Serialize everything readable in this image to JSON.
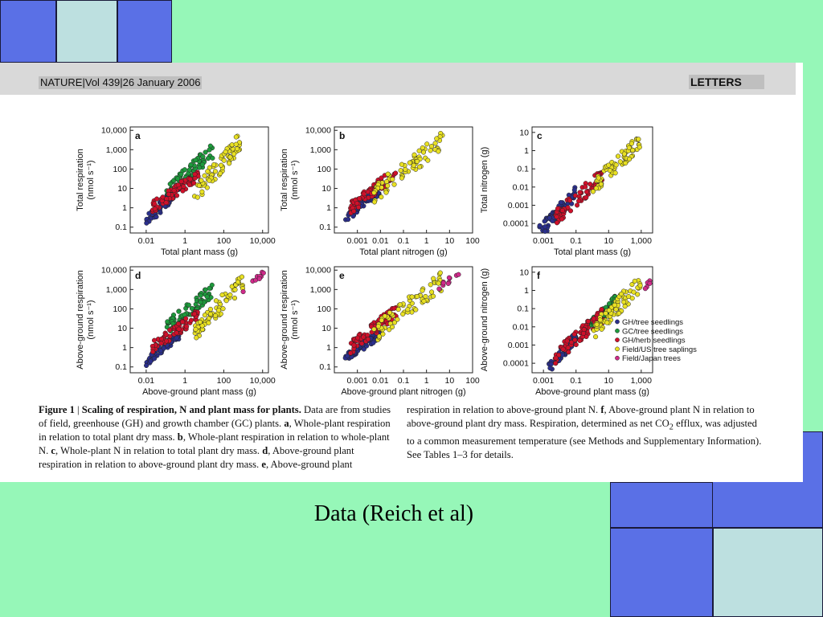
{
  "header": {
    "journal": "NATURE|Vol 439|26 January 2006",
    "section": "LETTERS"
  },
  "legend": [
    {
      "label": "GH/tree seedlings",
      "color": "#2b2f8c"
    },
    {
      "label": "GC/tree seedlings",
      "color": "#1e9a3c"
    },
    {
      "label": "GH/herb seedlings",
      "color": "#d0102a"
    },
    {
      "label": "Field/US tree saplings",
      "color": "#e8e022"
    },
    {
      "label": "Field/Japan trees",
      "color": "#d02a8a"
    }
  ],
  "chart_data": [
    {
      "panel": "a",
      "type": "scatter",
      "xlabel": "Total plant mass (g)",
      "ylabel": "Total respiration (nmol s⁻¹)",
      "xscale": "log",
      "yscale": "log",
      "xticks": [
        "0.01",
        "1",
        "100",
        "10,000"
      ],
      "yticks": [
        "0.1",
        "1",
        "10",
        "100",
        "1,000",
        "10,000"
      ],
      "xlim": [
        0.0015,
        20000
      ],
      "ylim": [
        0.05,
        15000
      ],
      "series": [
        {
          "group": "GH/tree seedlings",
          "x_range": [
            0.01,
            0.5
          ],
          "y_range": [
            0.2,
            10
          ]
        },
        {
          "group": "GC/tree seedlings",
          "x_range": [
            0.1,
            30
          ],
          "y_range": [
            5,
            1000
          ]
        },
        {
          "group": "GH/herb seedlings",
          "x_range": [
            0.02,
            5
          ],
          "y_range": [
            1,
            50
          ]
        },
        {
          "group": "Field/US tree saplings",
          "x_range": [
            3,
            800
          ],
          "y_range": [
            5,
            3000
          ]
        }
      ]
    },
    {
      "panel": "b",
      "type": "scatter",
      "xlabel": "Total plant nitrogen (g)",
      "ylabel": "Total respiration (nmol s⁻¹)",
      "xscale": "log",
      "yscale": "log",
      "xticks": [
        "0.001",
        "0.01",
        "0.1",
        "1",
        "10",
        "100"
      ],
      "yticks": [
        "0.1",
        "1",
        "10",
        "100",
        "1,000",
        "10,000"
      ],
      "xlim": [
        0.0001,
        100
      ],
      "ylim": [
        0.05,
        15000
      ],
      "series": [
        {
          "group": "GH/tree seedlings",
          "x_range": [
            0.0003,
            0.01
          ],
          "y_range": [
            0.3,
            10
          ]
        },
        {
          "group": "GH/herb seedlings",
          "x_range": [
            0.0005,
            0.05
          ],
          "y_range": [
            1,
            80
          ]
        },
        {
          "group": "Field/US tree saplings",
          "x_range": [
            0.005,
            5
          ],
          "y_range": [
            5,
            3000
          ]
        }
      ]
    },
    {
      "panel": "c",
      "type": "scatter",
      "xlabel": "Total plant mass (g)",
      "ylabel": "Total nitrogen (g)",
      "xscale": "log",
      "yscale": "log",
      "xticks": [
        "0.001",
        "0.1",
        "10",
        "1,000"
      ],
      "yticks": [
        "0.0001",
        "0.001",
        "0.01",
        "0.1",
        "1",
        "10"
      ],
      "xlim": [
        0.0002,
        5000
      ],
      "ylim": [
        3e-05,
        20
      ],
      "series": [
        {
          "group": "GH/tree seedlings",
          "x_range": [
            0.0005,
            0.1
          ],
          "y_range": [
            3e-05,
            0.005
          ]
        },
        {
          "group": "GH/herb seedlings",
          "x_range": [
            0.005,
            5
          ],
          "y_range": [
            0.0002,
            0.05
          ]
        },
        {
          "group": "Field/US tree saplings",
          "x_range": [
            1,
            800
          ],
          "y_range": [
            0.01,
            3
          ]
        }
      ]
    },
    {
      "panel": "d",
      "type": "scatter",
      "xlabel": "Above-ground plant mass (g)",
      "ylabel": "Above-ground respiration (nmol s⁻¹)",
      "xscale": "log",
      "yscale": "log",
      "xticks": [
        "0.01",
        "1",
        "100",
        "10,000"
      ],
      "yticks": [
        "0.1",
        "1",
        "10",
        "100",
        "1,000",
        "10,000"
      ],
      "xlim": [
        0.0015,
        20000
      ],
      "ylim": [
        0.05,
        15000
      ],
      "series": [
        {
          "group": "GH/tree seedlings",
          "x_range": [
            0.01,
            0.5
          ],
          "y_range": [
            0.2,
            5
          ]
        },
        {
          "group": "GC/tree seedlings",
          "x_range": [
            0.1,
            30
          ],
          "y_range": [
            10,
            1000
          ]
        },
        {
          "group": "GH/herb seedlings",
          "x_range": [
            0.02,
            5
          ],
          "y_range": [
            1,
            50
          ]
        },
        {
          "group": "Field/US tree saplings",
          "x_range": [
            3,
            1000
          ],
          "y_range": [
            5,
            3000
          ]
        },
        {
          "group": "Field/Japan trees",
          "x_range": [
            1000,
            15000
          ],
          "y_range": [
            1000,
            8000
          ]
        }
      ]
    },
    {
      "panel": "e",
      "type": "scatter",
      "xlabel": "Above-ground plant nitrogen (g)",
      "ylabel": "Above-ground respiration (nmol s⁻¹)",
      "xscale": "log",
      "yscale": "log",
      "xticks": [
        "0.001",
        "0.01",
        "0.1",
        "1",
        "10",
        "100"
      ],
      "yticks": [
        "0.1",
        "1",
        "10",
        "100",
        "1,000",
        "10,000"
      ],
      "xlim": [
        0.0001,
        100
      ],
      "ylim": [
        0.05,
        15000
      ],
      "series": [
        {
          "group": "GH/tree seedlings",
          "x_range": [
            0.0003,
            0.01
          ],
          "y_range": [
            0.3,
            5
          ]
        },
        {
          "group": "GH/herb seedlings",
          "x_range": [
            0.0005,
            0.05
          ],
          "y_range": [
            1,
            80
          ]
        },
        {
          "group": "Field/US tree saplings",
          "x_range": [
            0.005,
            5
          ],
          "y_range": [
            5,
            3000
          ]
        },
        {
          "group": "Field/Japan trees",
          "x_range": [
            3,
            30
          ],
          "y_range": [
            1000,
            8000
          ]
        }
      ]
    },
    {
      "panel": "f",
      "type": "scatter",
      "xlabel": "Above-ground plant mass (g)",
      "ylabel": "Above-ground nitrogen (g)",
      "xscale": "log",
      "yscale": "log",
      "xticks": [
        "0.001",
        "0.1",
        "10",
        "1,000"
      ],
      "yticks": [
        "0.0001",
        "0.001",
        "0.01",
        "0.1",
        "1",
        "10"
      ],
      "xlim": [
        0.0002,
        5000
      ],
      "ylim": [
        3e-05,
        20
      ],
      "series": [
        {
          "group": "GH/tree seedlings",
          "x_range": [
            0.002,
            0.1
          ],
          "y_range": [
            5e-05,
            0.003
          ]
        },
        {
          "group": "GC/tree seedlings",
          "x_range": [
            0.3,
            30
          ],
          "y_range": [
            0.005,
            0.3
          ]
        },
        {
          "group": "GH/herb seedlings",
          "x_range": [
            0.005,
            5
          ],
          "y_range": [
            0.0002,
            0.05
          ]
        },
        {
          "group": "Field/US tree saplings",
          "x_range": [
            1,
            1000
          ],
          "y_range": [
            0.005,
            3
          ]
        },
        {
          "group": "Field/Japan trees",
          "x_range": [
            1000,
            15000
          ],
          "y_range": [
            1,
            10
          ]
        }
      ]
    }
  ],
  "caption": {
    "figure_label": "Figure 1",
    "separator": " | ",
    "title": "Scaling of respiration, N and plant mass for plants.",
    "intro": " Data are from studies of field, greenhouse (GH) and growth chamber (GC) plants.",
    "a_label": "a",
    "a_text": ", Whole-plant respiration in relation to total plant dry mass. ",
    "b_label": "b",
    "b_text": ", Whole-plant respiration in relation to whole-plant N. ",
    "c_label": "c",
    "c_text": ", Whole-plant N in relation to total plant dry mass. ",
    "d_label": "d",
    "d_text": ", Above-ground plant respiration in relation to above-ground plant dry mass. ",
    "e_label": "e",
    "e_text": ", Above-ground plant respiration in relation to above-ground plant N. ",
    "f_label": "f",
    "f_text": ", Above-ground plant N in relation to above-ground plant dry mass. Respiration, determined as net CO",
    "co2_sub": "2",
    "tail": " efflux, was adjusted to a common measurement temperature (see Methods and Supplementary Information). See Tables 1–3 for details."
  },
  "slide_caption": "Data (Reich et al)"
}
